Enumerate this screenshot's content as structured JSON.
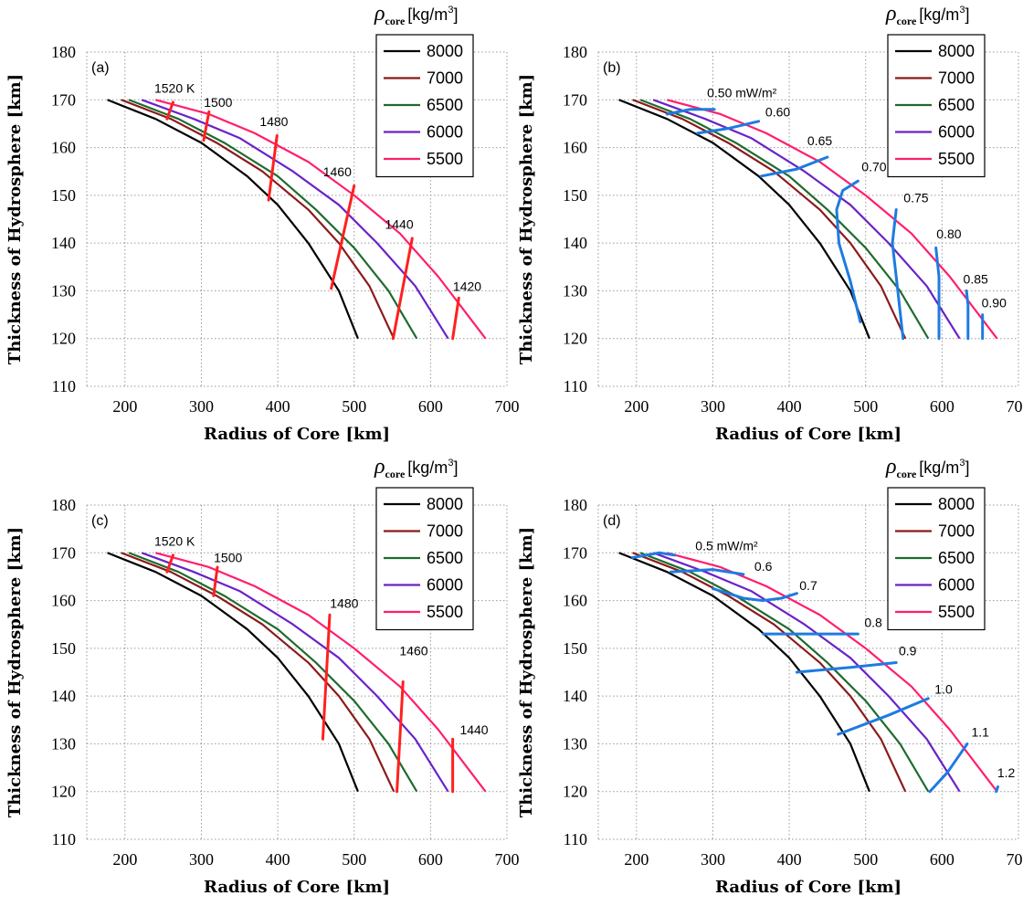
{
  "chart_data": [
    {
      "type": "line",
      "panel_tag": "(a)",
      "xlabel": "Radius of Core [km]",
      "ylabel": "Thickness of Hydrosphere [km]",
      "xlim": [
        150,
        700
      ],
      "ylim": [
        110,
        180
      ],
      "xticks": [
        "200",
        "300",
        "400",
        "500",
        "600",
        "700"
      ],
      "yticks": [
        "110",
        "120",
        "130",
        "140",
        "150",
        "160",
        "170",
        "180"
      ],
      "legend": {
        "symbol": "ρ",
        "subscript": "core",
        "unit": "[kg/m",
        "unit_exp": "3",
        "unit_close": "]",
        "entries": [
          "8000",
          "7000",
          "6500",
          "6000",
          "5500"
        ]
      },
      "series": [
        {
          "name": "8000",
          "color": "#000000",
          "x": [
            177,
            240,
            300,
            360,
            400,
            440,
            480,
            505
          ],
          "y": [
            170,
            166,
            161,
            154,
            148,
            140,
            130,
            120
          ]
        },
        {
          "name": "7000",
          "color": "#8b1a1a",
          "x": [
            195,
            260,
            320,
            380,
            440,
            480,
            520,
            552
          ],
          "y": [
            170,
            166,
            161,
            155,
            147,
            140,
            131,
            120
          ]
        },
        {
          "name": "6500",
          "color": "#1f6b2e",
          "x": [
            205,
            270,
            330,
            400,
            450,
            500,
            545,
            582
          ],
          "y": [
            170,
            166,
            161,
            154,
            147,
            139,
            130,
            120
          ]
        },
        {
          "name": "6000",
          "color": "#6a22c8",
          "x": [
            222,
            290,
            350,
            420,
            480,
            530,
            580,
            623
          ],
          "y": [
            170,
            166,
            162,
            155,
            148,
            140,
            131,
            120
          ]
        },
        {
          "name": "5500",
          "color": "#ff1e6e",
          "x": [
            240,
            310,
            370,
            440,
            500,
            560,
            610,
            672
          ],
          "y": [
            170,
            167,
            163,
            157,
            150,
            142,
            133,
            120
          ]
        }
      ],
      "contour_color": "#ff2020",
      "contours": [
        {
          "label": "1520 K",
          "x": [
            255,
            263
          ],
          "y": [
            166,
            169.5
          ]
        },
        {
          "label": "1500",
          "x": [
            303,
            310
          ],
          "y": [
            161.5,
            167.5
          ]
        },
        {
          "label": "1480",
          "x": [
            388,
            399
          ],
          "y": [
            149,
            162.5
          ]
        },
        {
          "label": "1460",
          "x": [
            470,
            500
          ],
          "y": [
            130.5,
            152
          ]
        },
        {
          "label": "1440",
          "x": [
            551,
            576
          ],
          "y": [
            120,
            141
          ]
        },
        {
          "label": "1420",
          "x": [
            629,
            637
          ],
          "y": [
            120,
            128.5
          ]
        }
      ],
      "contour_labels": [
        {
          "text": "1520 K",
          "x": 265,
          "y": 171.5
        },
        {
          "text": "1500",
          "x": 322,
          "y": 168.5
        },
        {
          "text": "1480",
          "x": 395,
          "y": 164.5
        },
        {
          "text": "1460",
          "x": 478,
          "y": 154
        },
        {
          "text": "1440",
          "x": 559,
          "y": 143
        },
        {
          "text": "1420",
          "x": 648,
          "y": 130
        }
      ]
    },
    {
      "type": "line",
      "panel_tag": "(b)",
      "xlabel": "Radius of Core [km]",
      "ylabel": "Thickness of Hydrosphere [km]",
      "xlim": [
        150,
        700
      ],
      "ylim": [
        110,
        180
      ],
      "xticks": [
        "200",
        "300",
        "400",
        "500",
        "600",
        "700"
      ],
      "yticks": [
        "110",
        "120",
        "130",
        "140",
        "150",
        "160",
        "170",
        "180"
      ],
      "legend": {
        "symbol": "ρ",
        "subscript": "core",
        "unit": "[kg/m",
        "unit_exp": "3",
        "unit_close": "]",
        "entries": [
          "8000",
          "7000",
          "6500",
          "6000",
          "5500"
        ]
      },
      "series": [
        {
          "name": "8000",
          "color": "#000000",
          "x": [
            177,
            240,
            300,
            360,
            400,
            440,
            480,
            505
          ],
          "y": [
            170,
            166,
            161,
            154,
            148,
            140,
            130,
            120
          ]
        },
        {
          "name": "7000",
          "color": "#8b1a1a",
          "x": [
            195,
            260,
            320,
            380,
            440,
            480,
            520,
            552
          ],
          "y": [
            170,
            166,
            161,
            155,
            147,
            140,
            131,
            120
          ]
        },
        {
          "name": "6500",
          "color": "#1f6b2e",
          "x": [
            205,
            270,
            330,
            400,
            450,
            500,
            545,
            582
          ],
          "y": [
            170,
            166,
            161,
            154,
            147,
            139,
            130,
            120
          ]
        },
        {
          "name": "6000",
          "color": "#6a22c8",
          "x": [
            222,
            290,
            350,
            420,
            480,
            530,
            580,
            623
          ],
          "y": [
            170,
            166,
            162,
            155,
            148,
            140,
            131,
            120
          ]
        },
        {
          "name": "5500",
          "color": "#ff1e6e",
          "x": [
            240,
            310,
            370,
            440,
            500,
            560,
            610,
            672
          ],
          "y": [
            170,
            167,
            163,
            157,
            150,
            142,
            133,
            120
          ]
        }
      ],
      "contour_color": "#1e7be0",
      "contours": [
        {
          "label": "0.50 mW/m²",
          "x": [
            240,
            270,
            302
          ],
          "y": [
            167,
            168,
            168
          ]
        },
        {
          "label": "0.60",
          "x": [
            280,
            320,
            360
          ],
          "y": [
            163,
            164,
            165.5
          ]
        },
        {
          "label": "0.65",
          "x": [
            363,
            410,
            450
          ],
          "y": [
            154,
            155.5,
            158
          ]
        },
        {
          "label": "0.70",
          "x": [
            493,
            480,
            465,
            462,
            470,
            490
          ],
          "y": [
            123.5,
            132,
            140,
            147,
            151,
            153
          ]
        },
        {
          "label": "0.75",
          "x": [
            549,
            540,
            535,
            540
          ],
          "y": [
            120,
            133,
            140,
            147
          ]
        },
        {
          "label": "0.80",
          "x": [
            596,
            596,
            592
          ],
          "y": [
            120,
            133,
            139
          ]
        },
        {
          "label": "0.85",
          "x": [
            634,
            634,
            632
          ],
          "y": [
            120,
            127,
            130
          ]
        },
        {
          "label": "0.90",
          "x": [
            653,
            653
          ],
          "y": [
            120,
            125
          ]
        }
      ],
      "contour_labels": [
        {
          "text": "0.50 mW/m²",
          "x": 338,
          "y": 170.5
        },
        {
          "text": "0.60",
          "x": 385,
          "y": 166.5
        },
        {
          "text": "0.65",
          "x": 440,
          "y": 160.5
        },
        {
          "text": "0.70",
          "x": 511,
          "y": 155
        },
        {
          "text": "0.75",
          "x": 566,
          "y": 148.5
        },
        {
          "text": "0.80",
          "x": 609,
          "y": 141
        },
        {
          "text": "0.85",
          "x": 644,
          "y": 131.5
        },
        {
          "text": "0.90",
          "x": 668,
          "y": 126.5
        }
      ]
    },
    {
      "type": "line",
      "panel_tag": "(c)",
      "xlabel": "Radius of Core [km]",
      "ylabel": "Thickness of Hydrosphere [km]",
      "xlim": [
        150,
        700
      ],
      "ylim": [
        110,
        180
      ],
      "xticks": [
        "200",
        "300",
        "400",
        "500",
        "600",
        "700"
      ],
      "yticks": [
        "110",
        "120",
        "130",
        "140",
        "150",
        "160",
        "170",
        "180"
      ],
      "legend": {
        "symbol": "ρ",
        "subscript": "core",
        "unit": "[kg/m",
        "unit_exp": "3",
        "unit_close": "]",
        "entries": [
          "8000",
          "7000",
          "6500",
          "6000",
          "5500"
        ]
      },
      "series": [
        {
          "name": "8000",
          "color": "#000000",
          "x": [
            177,
            240,
            300,
            360,
            400,
            440,
            480,
            505
          ],
          "y": [
            170,
            166,
            161,
            154,
            148,
            140,
            130,
            120
          ]
        },
        {
          "name": "7000",
          "color": "#8b1a1a",
          "x": [
            195,
            260,
            320,
            380,
            440,
            480,
            520,
            552
          ],
          "y": [
            170,
            166,
            161,
            155,
            147,
            140,
            131,
            120
          ]
        },
        {
          "name": "6500",
          "color": "#1f6b2e",
          "x": [
            205,
            270,
            330,
            400,
            450,
            500,
            545,
            582
          ],
          "y": [
            170,
            166,
            161,
            154,
            147,
            139,
            130,
            120
          ]
        },
        {
          "name": "6000",
          "color": "#6a22c8",
          "x": [
            222,
            290,
            350,
            420,
            480,
            530,
            580,
            623
          ],
          "y": [
            170,
            166,
            162,
            155,
            148,
            140,
            131,
            120
          ]
        },
        {
          "name": "5500",
          "color": "#ff1e6e",
          "x": [
            240,
            310,
            370,
            440,
            500,
            560,
            610,
            672
          ],
          "y": [
            170,
            167,
            163,
            157,
            150,
            142,
            133,
            120
          ]
        }
      ],
      "contour_color": "#ff2020",
      "contours": [
        {
          "label": "1520 K",
          "x": [
            255,
            263
          ],
          "y": [
            166,
            169.5
          ]
        },
        {
          "label": "1500",
          "x": [
            316,
            321
          ],
          "y": [
            161,
            167
          ]
        },
        {
          "label": "1480",
          "x": [
            459,
            468
          ],
          "y": [
            131,
            157
          ]
        },
        {
          "label": "1460",
          "x": [
            556,
            564
          ],
          "y": [
            120,
            143
          ]
        },
        {
          "label": "1440",
          "x": [
            629,
            629
          ],
          "y": [
            120,
            131
          ]
        }
      ],
      "contour_labels": [
        {
          "text": "1520 K",
          "x": 265,
          "y": 171.5
        },
        {
          "text": "1500",
          "x": 335,
          "y": 168
        },
        {
          "text": "1480",
          "x": 487,
          "y": 158.5
        },
        {
          "text": "1460",
          "x": 578,
          "y": 148.5
        },
        {
          "text": "1440",
          "x": 657,
          "y": 132
        }
      ]
    },
    {
      "type": "line",
      "panel_tag": "(d)",
      "xlabel": "Radius of Core [km]",
      "ylabel": "Thickness of Hydrosphere [km]",
      "xlim": [
        150,
        700
      ],
      "ylim": [
        110,
        180
      ],
      "xticks": [
        "200",
        "300",
        "400",
        "500",
        "600",
        "700"
      ],
      "yticks": [
        "110",
        "120",
        "130",
        "140",
        "150",
        "160",
        "170",
        "180"
      ],
      "legend": {
        "symbol": "ρ",
        "subscript": "core",
        "unit": "[kg/m",
        "unit_exp": "3",
        "unit_close": "]",
        "entries": [
          "8000",
          "7000",
          "6500",
          "6000",
          "5500"
        ]
      },
      "series": [
        {
          "name": "8000",
          "color": "#000000",
          "x": [
            177,
            240,
            300,
            360,
            400,
            440,
            480,
            505
          ],
          "y": [
            170,
            166,
            161,
            154,
            148,
            140,
            130,
            120
          ]
        },
        {
          "name": "7000",
          "color": "#8b1a1a",
          "x": [
            195,
            260,
            320,
            380,
            440,
            480,
            520,
            552
          ],
          "y": [
            170,
            166,
            161,
            155,
            147,
            140,
            131,
            120
          ]
        },
        {
          "name": "6500",
          "color": "#1f6b2e",
          "x": [
            205,
            270,
            330,
            400,
            450,
            500,
            545,
            582
          ],
          "y": [
            170,
            166,
            161,
            154,
            147,
            139,
            130,
            120
          ]
        },
        {
          "name": "6000",
          "color": "#6a22c8",
          "x": [
            222,
            290,
            350,
            420,
            480,
            530,
            580,
            623
          ],
          "y": [
            170,
            166,
            162,
            155,
            148,
            140,
            131,
            120
          ]
        },
        {
          "name": "5500",
          "color": "#ff1e6e",
          "x": [
            240,
            310,
            370,
            440,
            500,
            560,
            610,
            672
          ],
          "y": [
            170,
            167,
            163,
            157,
            150,
            142,
            133,
            120
          ]
        }
      ],
      "contour_color": "#1e7be0",
      "contours": [
        {
          "label": "0.5 mW/m²",
          "x": [
            195,
            230,
            250
          ],
          "y": [
            169,
            170,
            169.5
          ]
        },
        {
          "label": "0.6",
          "x": [
            245,
            300,
            340
          ],
          "y": [
            166,
            166.5,
            165.5
          ]
        },
        {
          "label": "0.7",
          "x": [
            300,
            340,
            365,
            390,
            410
          ],
          "y": [
            162.5,
            160.5,
            160,
            160.5,
            161.5
          ]
        },
        {
          "label": "0.8",
          "x": [
            366,
            420,
            490
          ],
          "y": [
            153,
            153,
            153
          ]
        },
        {
          "label": "0.9",
          "x": [
            410,
            480,
            540
          ],
          "y": [
            145,
            146,
            147
          ]
        },
        {
          "label": "1.0",
          "x": [
            464,
            530,
            582
          ],
          "y": [
            132,
            136,
            139.5
          ]
        },
        {
          "label": "1.1",
          "x": [
            584,
            607,
            633
          ],
          "y": [
            120,
            124,
            130
          ]
        },
        {
          "label": "1.2",
          "x": [
            671,
            673
          ],
          "y": [
            120,
            121
          ]
        }
      ],
      "contour_labels": [
        {
          "text": "0.5 mW/m²",
          "x": 318,
          "y": 170.5
        },
        {
          "text": "0.6",
          "x": 366,
          "y": 166.2
        },
        {
          "text": "0.7",
          "x": 425,
          "y": 162.2
        },
        {
          "text": "0.8",
          "x": 510,
          "y": 154.5
        },
        {
          "text": "0.9",
          "x": 555,
          "y": 148.5
        },
        {
          "text": "1.0",
          "x": 602,
          "y": 140.5
        },
        {
          "text": "1.1",
          "x": 650,
          "y": 131.5
        },
        {
          "text": "1.2",
          "x": 684,
          "y": 123
        }
      ]
    }
  ]
}
